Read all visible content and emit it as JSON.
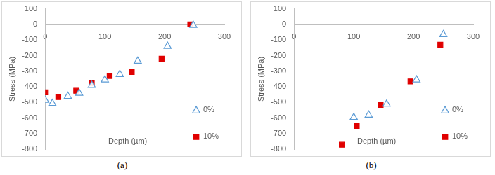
{
  "chart_data": [
    {
      "type": "scatter",
      "caption": "(a)",
      "x_label": "Depth (µm)",
      "y_label": "Stress (MPa)",
      "xlim": [
        0,
        300
      ],
      "xticks": [
        0,
        100,
        200,
        300
      ],
      "ylim": [
        -800,
        100
      ],
      "yticks": [
        -800,
        -700,
        -600,
        -500,
        -400,
        -300,
        -200,
        -100,
        0,
        100
      ],
      "grid": false,
      "legend": "lower right",
      "series": [
        {
          "name": "0%",
          "color": "#5b9bd5",
          "marker": "triangle",
          "x": [
            0,
            12,
            38,
            57,
            78,
            100,
            125,
            155,
            205,
            248
          ],
          "values": [
            -485,
            -505,
            -460,
            -440,
            -390,
            -355,
            -320,
            -235,
            -140,
            -5
          ]
        },
        {
          "name": "10%",
          "color": "#e00000",
          "marker": "square",
          "x": [
            0,
            22,
            52,
            78,
            108,
            145,
            195,
            243
          ],
          "values": [
            -435,
            -465,
            -425,
            -375,
            -330,
            -305,
            -220,
            0
          ]
        }
      ]
    },
    {
      "type": "scatter",
      "caption": "(b)",
      "x_label": "Depth (µm)",
      "y_label": "Stress (MPa)",
      "xlim": [
        0,
        300
      ],
      "xticks": [
        0,
        100,
        200,
        300
      ],
      "ylim": [
        -800,
        100
      ],
      "yticks": [
        -800,
        -700,
        -600,
        -500,
        -400,
        -300,
        -200,
        -100,
        0,
        100
      ],
      "grid": false,
      "legend": "lower right",
      "series": [
        {
          "name": "0%",
          "color": "#5b9bd5",
          "marker": "triangle",
          "x": [
            100,
            125,
            155,
            205,
            250
          ],
          "values": [
            -595,
            -580,
            -510,
            -355,
            -65
          ]
        },
        {
          "name": "10%",
          "color": "#e00000",
          "marker": "square",
          "x": [
            80,
            105,
            145,
            195,
            245
          ],
          "values": [
            -770,
            -650,
            -515,
            -365,
            -130
          ]
        }
      ]
    }
  ]
}
